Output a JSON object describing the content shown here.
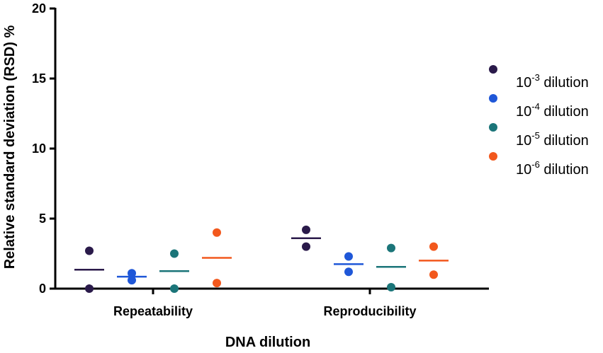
{
  "chart_data": {
    "type": "scatter",
    "title": "",
    "xlabel": "DNA dilution",
    "ylabel": "Relative standard deviation (RSD) %",
    "ylim": [
      0,
      20
    ],
    "yticks": [
      "0",
      "5",
      "10",
      "15",
      "20"
    ],
    "categories": [
      "Repeatability",
      "Reproducibility"
    ],
    "legend_position": "right",
    "series": [
      {
        "name": "dilution",
        "legend_base": "10",
        "legend_exp": "-3",
        "legend_suffix": " dilution",
        "color": "#2a1a4a",
        "points": [
          [
            2.7,
            0.0
          ],
          [
            4.2,
            3.0
          ]
        ],
        "means": [
          1.35,
          3.6
        ]
      },
      {
        "name": "dilution",
        "legend_base": "10",
        "legend_exp": "-4",
        "legend_suffix": " dilution",
        "color": "#1f57d8",
        "points": [
          [
            1.1,
            0.6
          ],
          [
            2.3,
            1.2
          ]
        ],
        "means": [
          0.85,
          1.75
        ]
      },
      {
        "name": "dilution",
        "legend_base": "10",
        "legend_exp": "-5",
        "legend_suffix": " dilution",
        "color": "#1b7579",
        "points": [
          [
            2.5,
            0.0
          ],
          [
            2.9,
            0.1
          ]
        ],
        "means": [
          1.25,
          1.55
        ]
      },
      {
        "name": "dilution",
        "legend_base": "10",
        "legend_exp": "-6",
        "legend_suffix": " dilution",
        "color": "#f2581d",
        "points": [
          [
            4.0,
            0.4
          ],
          [
            3.0,
            1.0
          ]
        ],
        "means": [
          2.2,
          2.0
        ]
      }
    ]
  }
}
